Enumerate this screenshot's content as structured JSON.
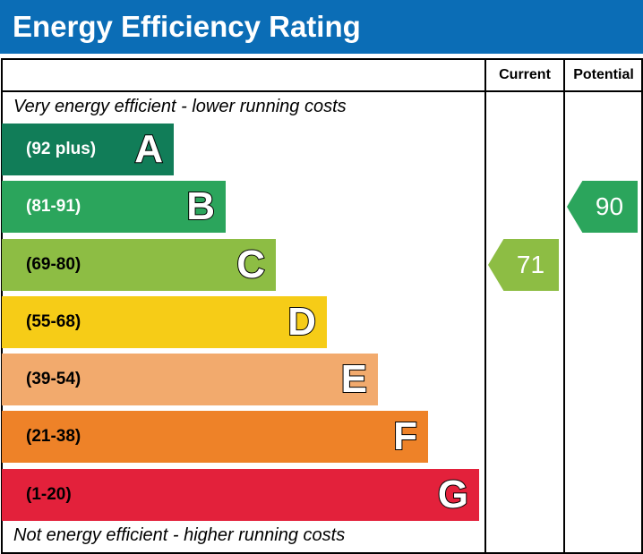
{
  "title": "Energy Efficiency Rating",
  "columns": {
    "current": "Current",
    "potential": "Potential"
  },
  "top_note": "Very energy efficient - lower running costs",
  "bottom_note": "Not energy efficient - higher running costs",
  "chart_data": {
    "type": "bar",
    "bands": [
      {
        "letter": "A",
        "range": "(92 plus)",
        "color": "#117d58",
        "text_color": "#ffffff",
        "min": 92,
        "max": 100
      },
      {
        "letter": "B",
        "range": "(81-91)",
        "color": "#2ba55c",
        "text_color": "#ffffff",
        "min": 81,
        "max": 91
      },
      {
        "letter": "C",
        "range": "(69-80)",
        "color": "#8dbd44",
        "text_color": "#000000",
        "min": 69,
        "max": 80
      },
      {
        "letter": "D",
        "range": "(55-68)",
        "color": "#f6cc17",
        "text_color": "#000000",
        "min": 55,
        "max": 68
      },
      {
        "letter": "E",
        "range": "(39-54)",
        "color": "#f2aa6d",
        "text_color": "#000000",
        "min": 39,
        "max": 54
      },
      {
        "letter": "F",
        "range": "(21-38)",
        "color": "#ee8228",
        "text_color": "#000000",
        "min": 21,
        "max": 38
      },
      {
        "letter": "G",
        "range": "(1-20)",
        "color": "#e3213b",
        "text_color": "#000000",
        "min": 1,
        "max": 20
      }
    ],
    "current": {
      "value": "71",
      "band": "C",
      "color": "#8dbd44"
    },
    "potential": {
      "value": "90",
      "band": "B",
      "color": "#2ba55c"
    }
  }
}
